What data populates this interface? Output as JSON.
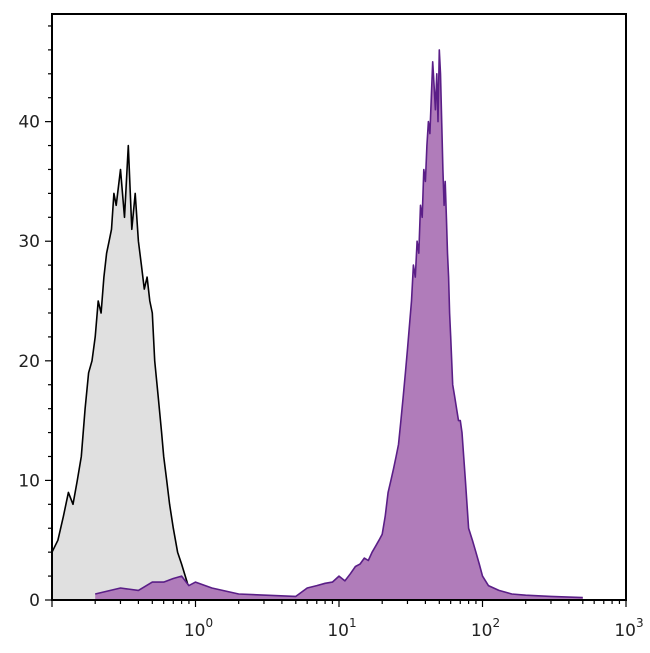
{
  "chart_data": {
    "type": "area",
    "x_scale": "log",
    "xlim": [
      0.1,
      1000
    ],
    "ylim": [
      0,
      49
    ],
    "y_ticks": [
      {
        "value": 0,
        "label": "0"
      },
      {
        "value": 10,
        "label": "10"
      },
      {
        "value": 20,
        "label": "20"
      },
      {
        "value": 30,
        "label": "30"
      },
      {
        "value": 40,
        "label": "40"
      }
    ],
    "x_ticks": [
      {
        "value": 1,
        "base": "10",
        "exp": "0"
      },
      {
        "value": 10,
        "base": "10",
        "exp": "1"
      },
      {
        "value": 100,
        "base": "10",
        "exp": "2"
      },
      {
        "value": 1000,
        "base": "10",
        "exp": "3"
      }
    ],
    "grid": false,
    "legend": "none",
    "series": [
      {
        "role": "control",
        "fill_color": "#e0e0e0",
        "line_color": "#000000",
        "x": [
          0.1,
          0.11,
          0.12,
          0.13,
          0.14,
          0.15,
          0.16,
          0.17,
          0.18,
          0.19,
          0.2,
          0.21,
          0.22,
          0.23,
          0.24,
          0.25,
          0.26,
          0.27,
          0.28,
          0.3,
          0.32,
          0.34,
          0.36,
          0.38,
          0.4,
          0.42,
          0.44,
          0.46,
          0.48,
          0.5,
          0.52,
          0.55,
          0.58,
          0.6,
          0.63,
          0.66,
          0.7,
          0.75,
          0.8,
          0.9
        ],
        "y": [
          4,
          5,
          7,
          9,
          8,
          10,
          12,
          16,
          19,
          20,
          22,
          25,
          24,
          27,
          29,
          30,
          31,
          34,
          33,
          36,
          32,
          38,
          31,
          34,
          30,
          28,
          26,
          27,
          25,
          24,
          20,
          17,
          14,
          12,
          10,
          8,
          6,
          4,
          3,
          1
        ]
      },
      {
        "role": "stained",
        "fill_color": "#b07cba",
        "line_color": "#5a1e87",
        "x": [
          0.2,
          0.3,
          0.4,
          0.5,
          0.6,
          0.7,
          0.8,
          0.9,
          1.0,
          1.3,
          2.0,
          5,
          6,
          7,
          8,
          9,
          10,
          11,
          12,
          13,
          14,
          15,
          16,
          17,
          18,
          19,
          20,
          21,
          22,
          23,
          24,
          25,
          26,
          27,
          28,
          29,
          30,
          31,
          32,
          33,
          34,
          35,
          36,
          37,
          38,
          39,
          40,
          41,
          42,
          43,
          44,
          45,
          46,
          47,
          48,
          49,
          50,
          51,
          52,
          53,
          54,
          55,
          56,
          57,
          58,
          59,
          60,
          62,
          64,
          66,
          68,
          70,
          72,
          74,
          76,
          78,
          80,
          85,
          90,
          95,
          100,
          110,
          130,
          160,
          200,
          300,
          500
        ],
        "y": [
          0.5,
          1,
          0.8,
          1.5,
          1.5,
          1.8,
          2,
          1.2,
          1.5,
          1,
          0.5,
          0.3,
          1,
          1.2,
          1.4,
          1.5,
          2,
          1.6,
          2.2,
          2.8,
          3,
          3.5,
          3.3,
          4,
          4.5,
          5,
          5.5,
          7,
          9,
          10,
          11,
          12,
          13,
          15,
          17,
          19,
          21,
          23,
          25,
          28,
          27,
          30,
          29,
          33,
          32,
          36,
          35,
          38,
          40,
          39,
          42,
          45,
          43,
          41,
          44,
          40,
          46,
          44,
          40,
          36,
          33,
          35,
          32,
          29,
          27,
          24,
          22,
          18,
          17,
          16,
          15,
          15,
          14,
          12,
          10,
          8,
          6,
          5,
          4,
          3,
          2,
          1.2,
          0.8,
          0.5,
          0.4,
          0.3,
          0.2
        ]
      }
    ]
  }
}
